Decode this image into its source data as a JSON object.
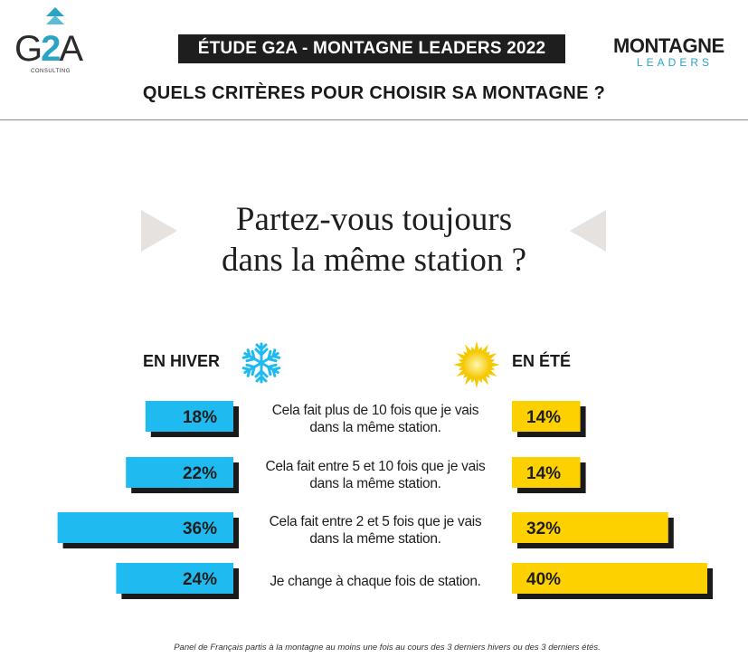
{
  "header": {
    "g2a_logo": {
      "main": "G2A",
      "sub": "CONSULTING"
    },
    "banner": "ÉTUDE G2A - MONTAGNE LEADERS 2022",
    "ml_logo": {
      "top": "MONTAGNE",
      "bottom": "LEADERS"
    },
    "title": "QUELS CRITÈRES POUR CHOISIR SA MONTAGNE ?"
  },
  "question": {
    "line1": "Partez-vous toujours",
    "line2": "dans la même station ?"
  },
  "columns": {
    "winter": "EN HIVER",
    "summer": "EN ÉTÉ"
  },
  "icons": {
    "winter": "snowflake-icon",
    "summer": "sun-icon",
    "arrows": "triangle-pointer-icon"
  },
  "colors": {
    "winter_bar": "#1fbbf0",
    "summer_bar": "#fdd100",
    "shadow": "#1a1a1a",
    "arrow": "#e5e2df",
    "banner": "#1e1e1e",
    "accent": "#2aa3c6"
  },
  "chart_data": {
    "type": "bar",
    "orientation": "horizontal-diverging",
    "categories": [
      "Cela fait plus de 10 fois que je vais dans la même station.",
      "Cela fait entre 5 et 10 fois que je vais dans la même station.",
      "Cela fait entre 2 et 5 fois que je vais dans la même station.",
      "Je change à chaque fois de station."
    ],
    "category_lines": [
      [
        "Cela fait plus de 10 fois que je vais",
        "dans la même station."
      ],
      [
        "Cela fait entre 5 et 10 fois que je vais",
        "dans la même station."
      ],
      [
        "Cela fait entre 2 et 5 fois que je vais",
        "dans la même station."
      ],
      [
        "Je change à chaque fois de station."
      ]
    ],
    "series": [
      {
        "name": "EN HIVER",
        "values": [
          18,
          22,
          36,
          24
        ],
        "labels": [
          "18%",
          "22%",
          "36%",
          "24%"
        ]
      },
      {
        "name": "EN ÉTÉ",
        "values": [
          14,
          14,
          32,
          40
        ],
        "labels": [
          "14%",
          "14%",
          "32%",
          "40%"
        ]
      }
    ],
    "unit": "%"
  },
  "footnote": "Panel de Français partis à la montagne au moins une fois au cours des 3 derniers hivers ou des 3 derniers étés."
}
